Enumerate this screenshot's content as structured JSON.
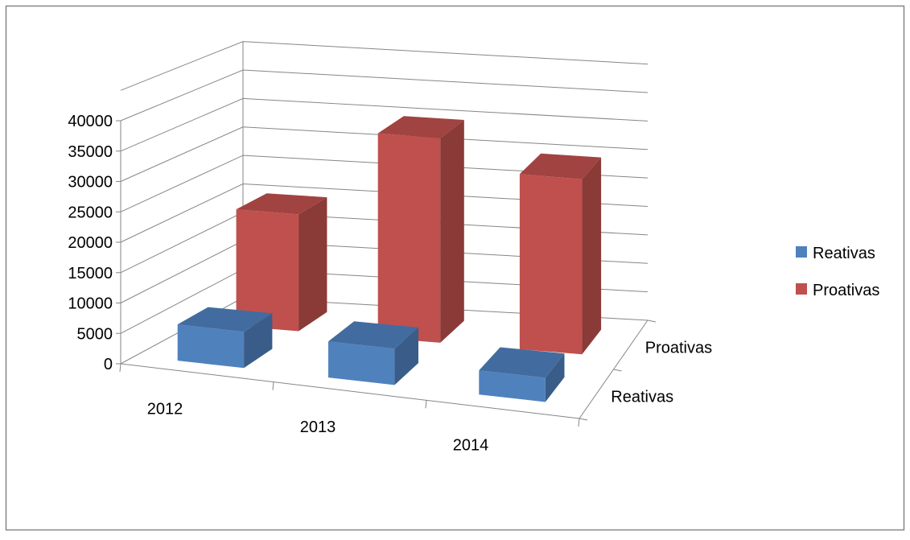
{
  "chart_data": {
    "type": "bar",
    "subtype": "3d-column",
    "title": "",
    "categories": [
      "2012",
      "2013",
      "2014"
    ],
    "series": [
      {
        "name": "Reativas",
        "values": [
          6000,
          6000,
          4000
        ],
        "color": "#4F81BD"
      },
      {
        "name": "Proativas",
        "values": [
          20000,
          35000,
          30000
        ],
        "color": "#C0504D"
      }
    ],
    "y_ticks": [
      "0",
      "5000",
      "10000",
      "15000",
      "20000",
      "25000",
      "30000",
      "35000",
      "40000"
    ],
    "ylim": [
      0,
      40000
    ],
    "depth_labels": [
      "Reativas",
      "Proativas"
    ],
    "grid": true,
    "legend": {
      "position": "right",
      "items": [
        "Reativas",
        "Proativas"
      ]
    }
  }
}
